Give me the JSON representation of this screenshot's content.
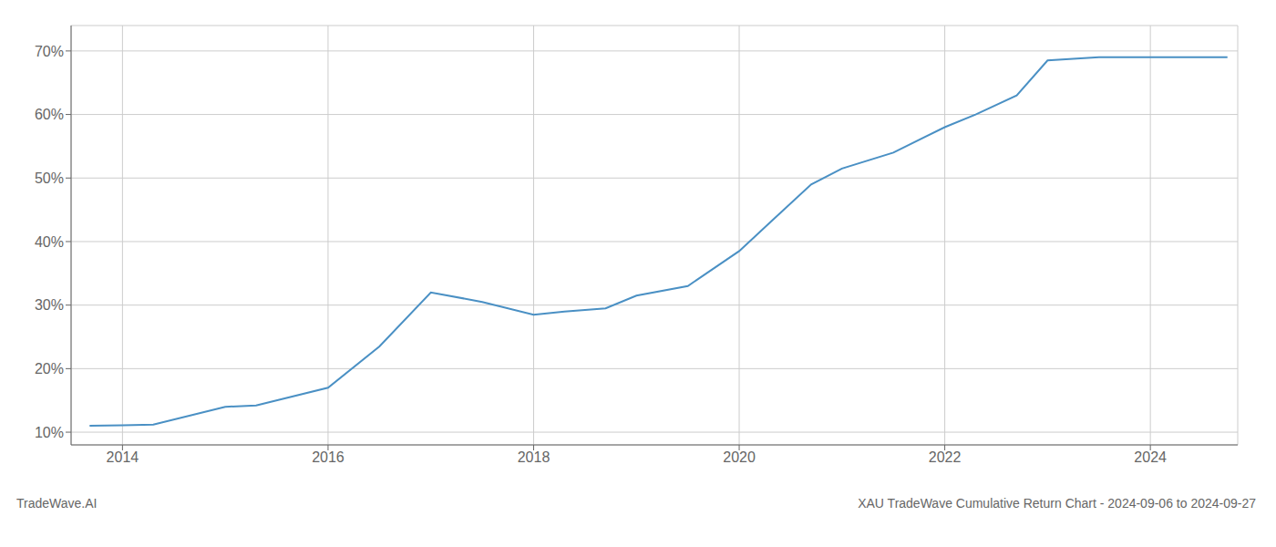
{
  "chart_data": {
    "type": "line",
    "x": [
      2013.68,
      2014.0,
      2014.3,
      2015.0,
      2015.3,
      2016.0,
      2016.5,
      2017.0,
      2017.5,
      2018.0,
      2018.3,
      2018.7,
      2019.0,
      2019.5,
      2020.0,
      2020.3,
      2020.7,
      2021.0,
      2021.5,
      2022.0,
      2022.3,
      2022.7,
      2023.0,
      2023.5,
      2023.75,
      2024.0,
      2024.5,
      2024.75
    ],
    "values": [
      11.0,
      11.1,
      11.2,
      14.0,
      14.2,
      17.0,
      23.5,
      32.0,
      30.5,
      28.5,
      29.0,
      29.5,
      31.5,
      33.0,
      38.5,
      43.0,
      49.0,
      51.5,
      54.0,
      58.0,
      60.0,
      63.0,
      68.5,
      69.0,
      69.0,
      69.0,
      69.0,
      69.0
    ],
    "color": "#4a90c4",
    "xlim": [
      2013.5,
      2024.85
    ],
    "xticks": [
      2014,
      2016,
      2018,
      2020,
      2022,
      2024
    ],
    "ylim": [
      8,
      74
    ],
    "yticks": [
      {
        "value": 10,
        "label": "10%"
      },
      {
        "value": 20,
        "label": "20%"
      },
      {
        "value": 30,
        "label": "30%"
      },
      {
        "value": 40,
        "label": "40%"
      },
      {
        "value": 50,
        "label": "50%"
      },
      {
        "value": 60,
        "label": "60%"
      },
      {
        "value": 70,
        "label": "70%"
      }
    ],
    "grid": true,
    "annotations": [
      "TradeWave.AI",
      "XAU TradeWave Cumulative Return Chart - 2024-09-06 to 2024-09-27"
    ]
  }
}
